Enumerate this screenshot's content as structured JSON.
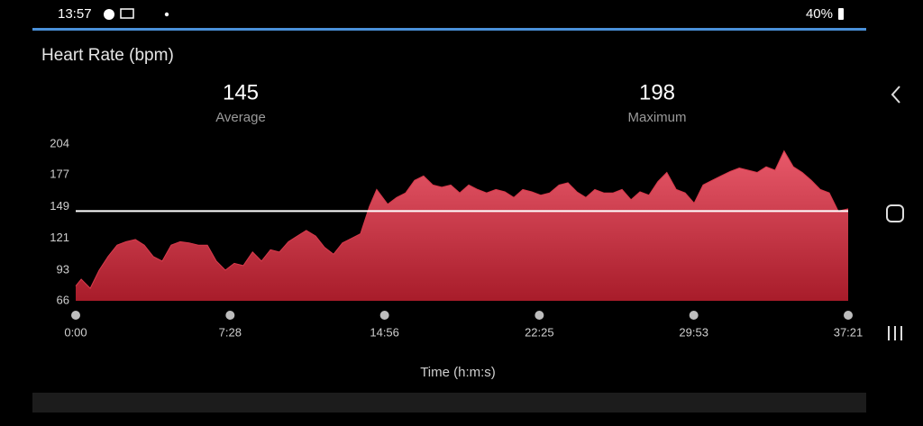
{
  "status_bar": {
    "time": "13:57",
    "battery": "40%"
  },
  "stats": [
    {
      "value": "145",
      "label": "Average"
    },
    {
      "value": "198",
      "label": "Maximum"
    }
  ],
  "average_line": 145,
  "chart_data": {
    "type": "area",
    "title": "Heart Rate (bpm)",
    "x_label": "Time (h:m:s)",
    "color": "#d83a4c",
    "x": [
      0,
      16,
      42,
      68,
      94,
      120,
      146,
      173,
      199,
      225,
      251,
      277,
      303,
      329,
      356,
      382,
      408,
      434,
      460,
      486,
      513,
      539,
      565,
      591,
      617,
      643,
      669,
      696,
      722,
      748,
      774,
      800,
      826,
      852,
      873,
      905,
      931,
      957,
      983,
      1009,
      1036,
      1062,
      1088,
      1114,
      1140,
      1166,
      1192,
      1219,
      1245,
      1271,
      1297,
      1323,
      1349,
      1375,
      1402,
      1428,
      1454,
      1480,
      1506,
      1532,
      1559,
      1585,
      1611,
      1637,
      1663,
      1689,
      1715,
      1742,
      1768,
      1794,
      1820,
      1846,
      1872,
      1899,
      1925,
      1951,
      1977,
      2003,
      2029,
      2055,
      2082,
      2108,
      2134,
      2160,
      2186,
      2212,
      2241
    ],
    "values": [
      79,
      85,
      77,
      93,
      105,
      115,
      118,
      120,
      115,
      105,
      101,
      115,
      118,
      117,
      115,
      115,
      101,
      93,
      99,
      97,
      109,
      101,
      111,
      109,
      118,
      123,
      128,
      123,
      113,
      107,
      117,
      121,
      125,
      149,
      164,
      151,
      157,
      161,
      172,
      176,
      168,
      166,
      168,
      161,
      168,
      164,
      161,
      164,
      162,
      157,
      164,
      162,
      159,
      161,
      168,
      170,
      162,
      157,
      164,
      161,
      161,
      164,
      155,
      162,
      159,
      171,
      179,
      164,
      161,
      152,
      168,
      172,
      176,
      180,
      183,
      181,
      179,
      184,
      181,
      198,
      184,
      179,
      172,
      164,
      161,
      145,
      147
    ],
    "xlim": [
      0,
      2241
    ],
    "xticks": [
      {
        "value": 0,
        "label": "0:00"
      },
      {
        "value": 448,
        "label": "7:28"
      },
      {
        "value": 896,
        "label": "14:56"
      },
      {
        "value": 1345,
        "label": "22:25"
      },
      {
        "value": 1793,
        "label": "29:53"
      },
      {
        "value": 2241,
        "label": "37:21"
      }
    ],
    "ylim": [
      66,
      204
    ],
    "yticks": [
      66,
      93,
      121,
      149,
      177,
      204
    ]
  }
}
